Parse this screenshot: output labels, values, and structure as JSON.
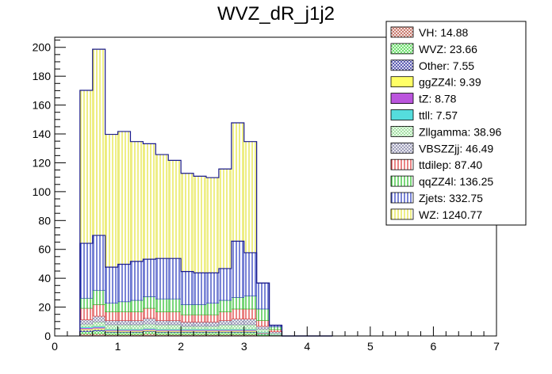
{
  "chart_data": {
    "type": "bar",
    "subtype": "stacked-histogram",
    "title": "WVZ_dR_j1j2",
    "xlabel": "",
    "ylabel": "",
    "xlim": [
      0,
      7
    ],
    "ylim": [
      0,
      207
    ],
    "x_ticks": [
      "0",
      "1",
      "2",
      "3",
      "4",
      "5",
      "6",
      "7"
    ],
    "y_ticks": [
      "0",
      "20",
      "40",
      "60",
      "80",
      "100",
      "120",
      "140",
      "160",
      "180",
      "200"
    ],
    "bin_width": 0.2,
    "bins": [
      0.4,
      0.6,
      0.8,
      1.0,
      1.2,
      1.4,
      1.6,
      1.8,
      2.0,
      2.2,
      2.4,
      2.6,
      2.8,
      3.0,
      3.2,
      3.4,
      3.6,
      3.8,
      4.0,
      4.2
    ],
    "series": [
      {
        "name": "VH",
        "legend": "VH: 14.88",
        "color": "#c2685a",
        "pattern": "cross",
        "values": [
          1.5,
          1.5,
          1.0,
          1.0,
          1.0,
          1.5,
          1.0,
          1.0,
          1.0,
          1.0,
          1.0,
          1.0,
          1.0,
          1.0,
          0.5,
          0.2,
          0,
          0,
          0,
          0
        ]
      },
      {
        "name": "WVZ",
        "legend": "WVZ: 23.66",
        "color": "#5adc5a",
        "pattern": "cross",
        "values": [
          1.5,
          2.0,
          1.5,
          1.5,
          1.5,
          1.5,
          1.5,
          1.5,
          1.5,
          1.5,
          1.5,
          1.5,
          1.5,
          1.5,
          1.0,
          0.3,
          0,
          0,
          0,
          0
        ]
      },
      {
        "name": "Other",
        "legend": "Other: 7.55",
        "color": "#4444a8",
        "pattern": "cross",
        "values": [
          1.0,
          1.0,
          0.5,
          0.5,
          0.5,
          0.5,
          0.5,
          0.5,
          0.5,
          0.5,
          0.5,
          0.5,
          0.5,
          0.5,
          0.3,
          0.1,
          0,
          0,
          0,
          0
        ]
      },
      {
        "name": "ggZZ4l",
        "legend": "ggZZ4l: 9.39",
        "color": "#ffff66",
        "pattern": "solid",
        "values": [
          0.8,
          0.8,
          0.6,
          0.6,
          0.6,
          0.6,
          0.6,
          0.6,
          0.6,
          0.6,
          0.6,
          0.6,
          0.6,
          0.6,
          0.3,
          0.1,
          0,
          0,
          0,
          0
        ]
      },
      {
        "name": "tZ",
        "legend": "tZ: 8.78",
        "color": "#bb55dd",
        "pattern": "solid",
        "values": [
          0.8,
          0.8,
          0.6,
          0.6,
          0.6,
          0.6,
          0.6,
          0.6,
          0.6,
          0.6,
          0.6,
          0.6,
          0.6,
          0.6,
          0.3,
          0.1,
          0,
          0,
          0,
          0
        ]
      },
      {
        "name": "ttll",
        "legend": "ttll: 7.57",
        "color": "#55dddd",
        "pattern": "solid",
        "values": [
          0.6,
          0.6,
          0.5,
          0.5,
          0.5,
          0.5,
          0.5,
          0.5,
          0.5,
          0.5,
          0.5,
          0.5,
          0.5,
          0.5,
          0.3,
          0.1,
          0,
          0,
          0,
          0
        ]
      },
      {
        "name": "Zllgamma",
        "legend": "Zllgamma: 38.96",
        "color": "#99dd99",
        "pattern": "cross",
        "values": [
          2,
          3,
          3,
          3,
          3,
          3,
          3,
          3,
          2,
          2,
          2,
          3,
          3,
          3,
          2,
          1,
          0,
          0,
          0,
          0
        ]
      },
      {
        "name": "VBSZZjj",
        "legend": "VBSZZjj: 46.49",
        "color": "#9090b0",
        "pattern": "cross",
        "values": [
          3,
          4,
          3,
          3,
          3,
          4,
          3,
          3,
          3,
          3,
          3,
          3,
          4,
          4,
          2,
          1,
          0,
          0,
          0,
          0
        ]
      },
      {
        "name": "ttdilep",
        "legend": "ttdilep: 87.40",
        "color": "#dd3333",
        "pattern": "vertical",
        "values": [
          8,
          8,
          6,
          6,
          6,
          7,
          6,
          6,
          5,
          5,
          5,
          6,
          7,
          7,
          4,
          1.5,
          0,
          0,
          0,
          0
        ]
      },
      {
        "name": "qqZZ4l",
        "legend": "qqZZ4l: 136.25",
        "color": "#22bb22",
        "pattern": "vertical",
        "values": [
          7,
          10,
          6,
          7,
          8,
          8,
          9,
          9,
          7,
          7,
          8,
          8,
          8,
          9,
          8,
          2,
          0,
          0,
          0,
          0
        ]
      },
      {
        "name": "Zjets",
        "legend": "Zjets: 332.75",
        "color": "#2233bb",
        "pattern": "vertical",
        "values": [
          38,
          38,
          25,
          26,
          27,
          26,
          28,
          28,
          23,
          22,
          21,
          22,
          39,
          30,
          18,
          1,
          0,
          0,
          0,
          0
        ]
      },
      {
        "name": "WZ",
        "legend": "WZ: 1240.77",
        "color": "#e4e436",
        "pattern": "vertical",
        "values": [
          106,
          129,
          92,
          92,
          83,
          80,
          72,
          68,
          68,
          67,
          66,
          69,
          82,
          77,
          0,
          0,
          0,
          0,
          0,
          0
        ]
      }
    ]
  }
}
